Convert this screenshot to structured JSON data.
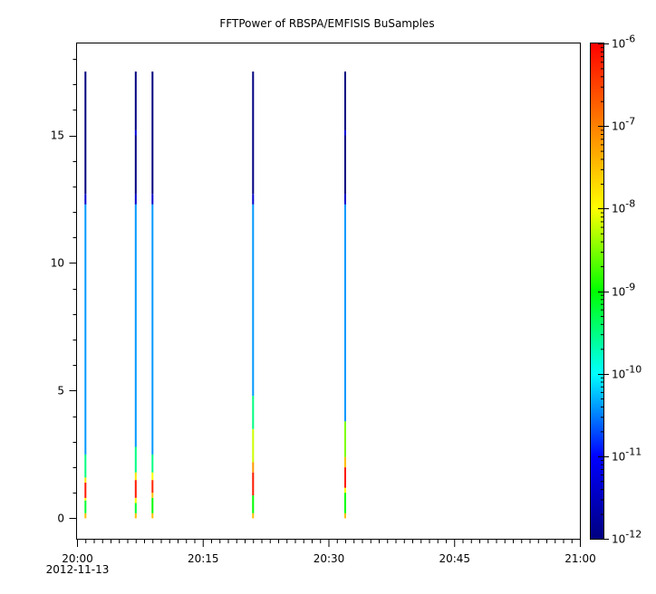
{
  "chart_data": {
    "type": "heatmap",
    "title": "FFTPower of RBSPA/EMFISIS  BuSamples",
    "xlabel": "",
    "ylabel": "",
    "x_range": [
      "20:00",
      "21:00"
    ],
    "x_date": "2012-11-13",
    "x_ticks": [
      {
        "time": "20:00",
        "label": "20:00",
        "sub_label": "2012-11-13"
      },
      {
        "time": "20:15",
        "label": "20:15"
      },
      {
        "time": "20:30",
        "label": "20:30"
      },
      {
        "time": "20:45",
        "label": "20:45"
      },
      {
        "time": "21:00",
        "label": "21:00"
      }
    ],
    "ylim": [
      -0.8,
      18.6
    ],
    "y_ticks": [
      "0",
      "5",
      "10",
      "15"
    ],
    "colorbar": {
      "scale": "log",
      "range": [
        1e-12,
        1e-06
      ],
      "ticks": [
        {
          "exp": -12,
          "base": "10",
          "sup": "-12"
        },
        {
          "exp": -11,
          "base": "10",
          "sup": "-11"
        },
        {
          "exp": -10,
          "base": "10",
          "sup": "-10"
        },
        {
          "exp": -9,
          "base": "10",
          "sup": "-9"
        },
        {
          "exp": -8,
          "base": "10",
          "sup": "-8"
        },
        {
          "exp": -7,
          "base": "10",
          "sup": "-7"
        },
        {
          "exp": -6,
          "base": "10",
          "sup": "-6"
        }
      ],
      "colors": [
        "#000080",
        "#0000ff",
        "#00ffff",
        "#00ff00",
        "#ffff00",
        "#ff8000",
        "#ff0000"
      ]
    },
    "series": [
      {
        "time": "20:01",
        "y_top": 17.5,
        "bands": [
          {
            "y0": 0.0,
            "y1": 0.2,
            "exp": -7.5
          },
          {
            "y0": 0.2,
            "y1": 0.7,
            "exp": -9.2
          },
          {
            "y0": 0.7,
            "y1": 0.8,
            "exp": -8.0
          },
          {
            "y0": 0.8,
            "y1": 1.4,
            "exp": -6.2
          },
          {
            "y0": 1.4,
            "y1": 1.6,
            "exp": -7.8
          },
          {
            "y0": 1.6,
            "y1": 2.5,
            "exp": -9.5
          },
          {
            "y0": 2.5,
            "y1": 12.3,
            "exp": -10.4
          },
          {
            "y0": 12.3,
            "y1": 12.7,
            "exp": -11.4
          },
          {
            "y0": 12.7,
            "y1": 17.5,
            "exp": -12.0
          }
        ]
      },
      {
        "time": "20:07",
        "y_top": 17.5,
        "bands": [
          {
            "y0": 0.0,
            "y1": 0.2,
            "exp": -7.5
          },
          {
            "y0": 0.2,
            "y1": 0.6,
            "exp": -9.2
          },
          {
            "y0": 0.6,
            "y1": 0.8,
            "exp": -8.0
          },
          {
            "y0": 0.8,
            "y1": 1.5,
            "exp": -6.2
          },
          {
            "y0": 1.5,
            "y1": 1.8,
            "exp": -7.8
          },
          {
            "y0": 1.8,
            "y1": 2.8,
            "exp": -9.5
          },
          {
            "y0": 2.8,
            "y1": 12.3,
            "exp": -10.4
          },
          {
            "y0": 12.3,
            "y1": 12.7,
            "exp": -11.4
          },
          {
            "y0": 12.7,
            "y1": 15.0,
            "exp": -12.0
          },
          {
            "y0": 15.0,
            "y1": 15.2,
            "exp": -11.3
          },
          {
            "y0": 15.2,
            "y1": 17.5,
            "exp": -12.0
          }
        ]
      },
      {
        "time": "20:09",
        "y_top": 17.5,
        "bands": [
          {
            "y0": 0.0,
            "y1": 0.2,
            "exp": -7.5
          },
          {
            "y0": 0.2,
            "y1": 0.8,
            "exp": -9.0
          },
          {
            "y0": 0.8,
            "y1": 1.0,
            "exp": -7.5
          },
          {
            "y0": 1.0,
            "y1": 1.5,
            "exp": -6.3
          },
          {
            "y0": 1.5,
            "y1": 1.8,
            "exp": -8.0
          },
          {
            "y0": 1.8,
            "y1": 2.5,
            "exp": -9.5
          },
          {
            "y0": 2.5,
            "y1": 12.3,
            "exp": -10.4
          },
          {
            "y0": 12.3,
            "y1": 12.7,
            "exp": -11.4
          },
          {
            "y0": 12.7,
            "y1": 17.5,
            "exp": -12.0
          }
        ]
      },
      {
        "time": "20:21",
        "y_top": 17.5,
        "bands": [
          {
            "y0": 0.0,
            "y1": 0.2,
            "exp": -7.5
          },
          {
            "y0": 0.2,
            "y1": 0.9,
            "exp": -9.0
          },
          {
            "y0": 0.9,
            "y1": 1.8,
            "exp": -6.2
          },
          {
            "y0": 1.8,
            "y1": 2.2,
            "exp": -7.2
          },
          {
            "y0": 2.2,
            "y1": 3.5,
            "exp": -8.2
          },
          {
            "y0": 3.5,
            "y1": 4.8,
            "exp": -9.5
          },
          {
            "y0": 4.8,
            "y1": 12.3,
            "exp": -10.4
          },
          {
            "y0": 12.3,
            "y1": 12.7,
            "exp": -11.4
          },
          {
            "y0": 12.7,
            "y1": 17.5,
            "exp": -12.0
          }
        ]
      },
      {
        "time": "20:32",
        "y_top": 17.5,
        "bands": [
          {
            "y0": 0.0,
            "y1": 0.2,
            "exp": -7.5
          },
          {
            "y0": 0.2,
            "y1": 1.0,
            "exp": -9.0
          },
          {
            "y0": 1.0,
            "y1": 1.2,
            "exp": -8.0
          },
          {
            "y0": 1.2,
            "y1": 2.0,
            "exp": -6.2
          },
          {
            "y0": 2.0,
            "y1": 2.4,
            "exp": -7.5
          },
          {
            "y0": 2.4,
            "y1": 3.8,
            "exp": -8.5
          },
          {
            "y0": 3.8,
            "y1": 12.3,
            "exp": -10.4
          },
          {
            "y0": 12.3,
            "y1": 12.7,
            "exp": -11.4
          },
          {
            "y0": 12.7,
            "y1": 15.0,
            "exp": -12.0
          },
          {
            "y0": 15.0,
            "y1": 15.2,
            "exp": -11.3
          },
          {
            "y0": 15.2,
            "y1": 17.5,
            "exp": -12.0
          }
        ]
      }
    ]
  }
}
